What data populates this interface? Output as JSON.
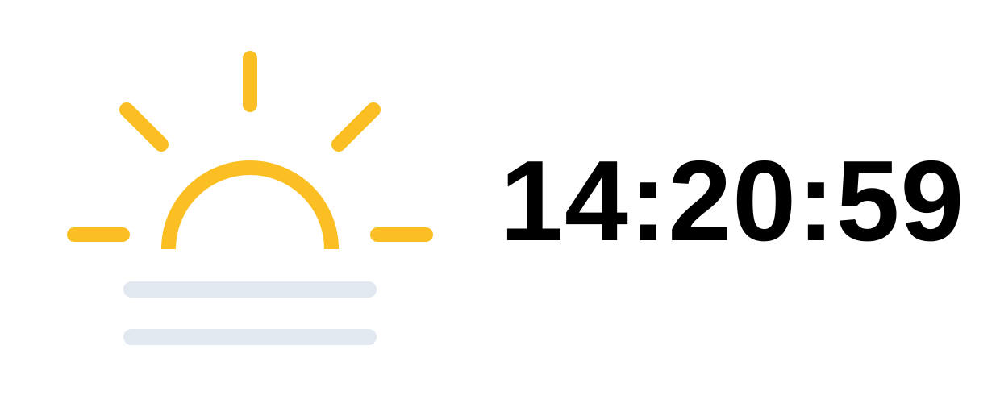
{
  "clock": {
    "time": "14:20:59"
  },
  "icon": {
    "name": "sunrise-fog-icon",
    "sun_color": "#FBBF24",
    "fog_color": "#E2E8F0"
  }
}
